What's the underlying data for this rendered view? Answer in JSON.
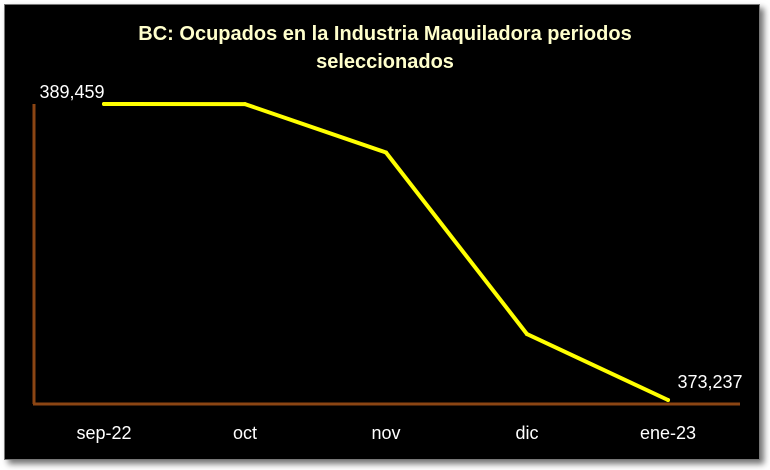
{
  "chart_data": {
    "type": "line",
    "title_lines": [
      "BC: Ocupados en la Industria Maquiladora periodos",
      "seleccionados"
    ],
    "categories": [
      "sep-22",
      "oct",
      "nov",
      "dic",
      "ene-23"
    ],
    "series": [
      {
        "values": [
          389459,
          389455,
          386800,
          376850,
          373237
        ]
      }
    ],
    "data_labels": [
      {
        "index": 0,
        "text": "389,459"
      },
      {
        "index": 4,
        "text": "373,237"
      }
    ],
    "ylim": [
      373237,
      389459
    ],
    "grid": false,
    "legend": "none",
    "colors": {
      "background": "#000000",
      "line": "#FFFF00",
      "axis": "#8B4513",
      "title": "#FFFFCC",
      "text": "#FFFFFF"
    }
  }
}
